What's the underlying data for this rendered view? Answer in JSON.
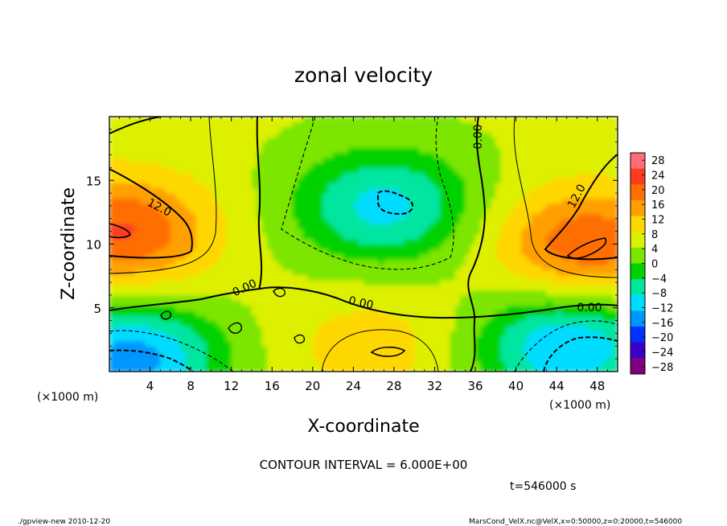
{
  "chart_data": {
    "type": "heatmap",
    "title": "zonal velocity",
    "xlabel": "X-coordinate",
    "ylabel": "Z-coordinate",
    "x_unit": "(×1000 m)",
    "y_unit": "(×1000 m)",
    "xlim": [
      0,
      50
    ],
    "ylim": [
      0,
      20
    ],
    "x_ticks": [
      4,
      8,
      12,
      16,
      20,
      24,
      28,
      32,
      36,
      40,
      44,
      48
    ],
    "y_ticks": [
      5,
      10,
      15
    ],
    "colorbar": {
      "ticks": [
        "28",
        "24",
        "20",
        "16",
        "12",
        "8",
        "4",
        "0",
        "−4",
        "−8",
        "−12",
        "−16",
        "−20",
        "−24",
        "−28"
      ],
      "values": [
        28,
        24,
        20,
        16,
        12,
        8,
        4,
        0,
        -4,
        -8,
        -12,
        -16,
        -20,
        -24,
        -28
      ],
      "range": [
        -30,
        30
      ]
    },
    "contour_interval": "CONTOUR INTERVAL = 6.000E+00",
    "contour_labels": [
      "12.0",
      "12.0",
      "0.00",
      "0.00",
      "0.00",
      "0.00"
    ],
    "time_label": "t=546000 s",
    "footer_left": "./gpview-new  2010-12-20",
    "footer_right": "MarsCond_VelX.nc@VelX,x=0:50000,z=0:20000,t=546000",
    "field_features": [
      {
        "x": 1,
        "z": 11,
        "value": 22
      },
      {
        "x": 47,
        "z": 10,
        "value": 21
      },
      {
        "x": 27,
        "z": 13,
        "value": -10
      },
      {
        "x": 26,
        "z": 2,
        "value": 11
      },
      {
        "x": 2,
        "z": 1,
        "value": -15
      },
      {
        "x": 45,
        "z": 2,
        "value": -13
      }
    ]
  },
  "colors": {
    "colormap": [
      "#800080",
      "#3b00c8",
      "#0032ff",
      "#0096ff",
      "#00dcff",
      "#00e6a0",
      "#00d200",
      "#7ce600",
      "#dcf000",
      "#ffd700",
      "#ffa000",
      "#ff6e00",
      "#ff3c1e",
      "#ff6e78"
    ]
  }
}
